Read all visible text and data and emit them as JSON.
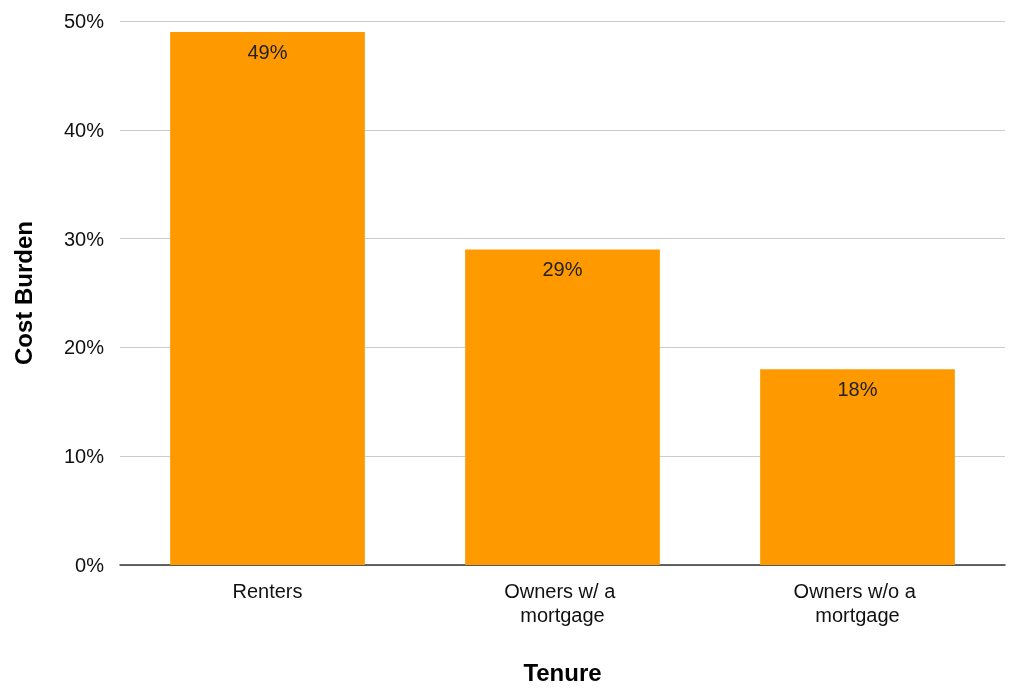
{
  "chart_data": {
    "type": "bar",
    "xlabel": "Tenure",
    "ylabel": "Cost Burden",
    "categories": [
      "Renters",
      "Owners w/ a mortgage",
      "Owners w/o a mortgage"
    ],
    "values": [
      49,
      29,
      18
    ],
    "value_labels": [
      "49%",
      "29%",
      "18%"
    ],
    "color": "#ff9900",
    "ylim": [
      0,
      50
    ],
    "yticks": [
      {
        "value": 0,
        "label": "0%"
      },
      {
        "value": 10,
        "label": "10%"
      },
      {
        "value": 20,
        "label": "20%"
      },
      {
        "value": 30,
        "label": "30%"
      },
      {
        "value": 40,
        "label": "40%"
      },
      {
        "value": 50,
        "label": "50%"
      }
    ],
    "grid": "y"
  }
}
